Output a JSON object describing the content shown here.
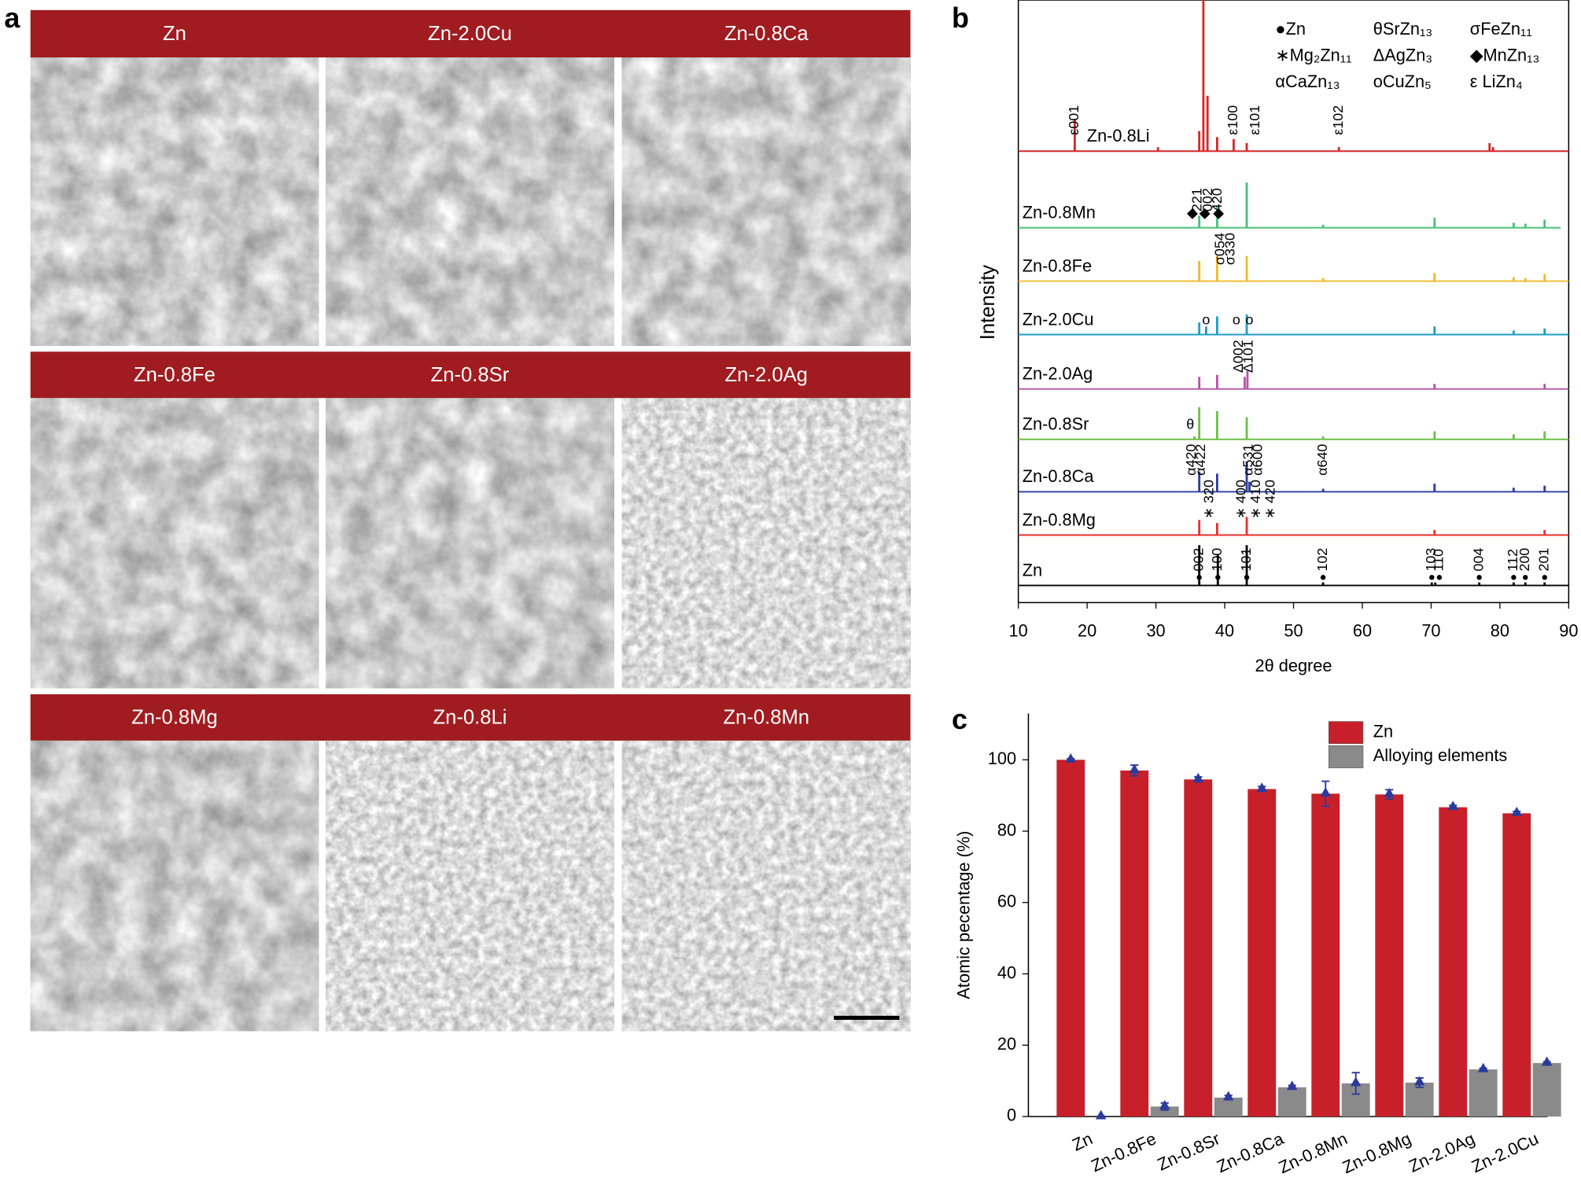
{
  "panel_labels": [
    "a",
    "b",
    "c"
  ],
  "micrographs": {
    "header_color": "#a01c20",
    "titles": [
      "Zn",
      "Zn-2.0Cu",
      "Zn-0.8Ca",
      "Zn-0.8Fe",
      "Zn-0.8Sr",
      "Zn-2.0Ag",
      "Zn-0.8Mg",
      "Zn-0.8Li",
      "Zn-0.8Mn"
    ]
  },
  "chart_data": [
    {
      "type": "xrd",
      "xlabel": "2θ degree",
      "ylabel": "Intensity",
      "xlim": [
        10,
        90
      ],
      "xticks": [
        10,
        20,
        30,
        40,
        50,
        60,
        70,
        80,
        90
      ],
      "legend": [
        "●Zn",
        "θSrZn₁₃",
        "σFeZn₁₁",
        "∗Mg₂Zn₁₁",
        "ΔAgZn₃",
        "◆MnZn₁₃",
        "αCaZn₁₃",
        "οCuZn₅",
        "ε LiZn₄"
      ],
      "series": [
        {
          "name": "Zn-0.8Li",
          "color": "#d62728",
          "x": [
            18.2,
            30.3,
            36.3,
            36.9,
            37.5,
            38.9,
            41.3,
            43.2,
            56.6,
            78.5,
            79
          ],
          "values": [
            32,
            4,
            20,
            150,
            55,
            14,
            12,
            8,
            4,
            8,
            4
          ],
          "annotations": [
            {
              "text": "ε001",
              "x": 18.2
            },
            {
              "text": "ε100",
              "x": 41.3
            },
            {
              "text": "ε101",
              "x": 44.5
            },
            {
              "text": "ε102",
              "x": 56.6
            }
          ]
        },
        {
          "name": "Zn-0.8Mn",
          "color": "#4cc07a",
          "x": [
            36.3,
            38.9,
            43.2,
            54.3,
            70.5,
            82,
            83.7,
            86.5
          ],
          "values": [
            12,
            22,
            45,
            3,
            10,
            5,
            4,
            8
          ],
          "annotations": [
            {
              "text": "◆",
              "x": 35.3
            },
            {
              "text": "221",
              "x": 36.1
            },
            {
              "text": "◆",
              "x": 37.1
            },
            {
              "text": "002",
              "x": 37.6
            },
            {
              "text": "◆",
              "x": 39.1
            },
            {
              "text": "420",
              "x": 39.0
            }
          ]
        },
        {
          "name": "Zn-0.8Fe",
          "color": "#f2b92b",
          "x": [
            36.3,
            38.9,
            43.2,
            54.3,
            70.5,
            82,
            83.7,
            86.5
          ],
          "values": [
            20,
            25,
            25,
            3,
            8,
            4,
            3,
            7
          ],
          "annotations": [
            {
              "text": "σ054",
              "x": 39.4
            },
            {
              "text": "σ330",
              "x": 40.9
            }
          ]
        },
        {
          "name": "Zn-2.0Cu",
          "color": "#1e9ec4",
          "x": [
            36.3,
            37.3,
            38.9,
            43.2,
            70.5,
            82,
            86.5
          ],
          "values": [
            12,
            8,
            18,
            20,
            8,
            4,
            6
          ],
          "annotations": [
            {
              "text": "ο",
              "x": 37.3
            },
            {
              "text": "ο",
              "x": 41.7
            },
            {
              "text": "ο",
              "x": 43.6
            }
          ]
        },
        {
          "name": "Zn-2.0Ag",
          "color": "#b653a8",
          "x": [
            36.3,
            38.9,
            42.9,
            43.3,
            70.5,
            86.5
          ],
          "values": [
            12,
            14,
            12,
            18,
            5,
            5
          ],
          "annotations": [
            {
              "text": "Δ002",
              "x": 42.1
            },
            {
              "text": "Δ101",
              "x": 43.5
            }
          ]
        },
        {
          "name": "Zn-0.8Sr",
          "color": "#6cc04a",
          "x": [
            35.6,
            36.3,
            38.9,
            43.2,
            54.3,
            70.5,
            82,
            86.5
          ],
          "values": [
            3,
            32,
            28,
            22,
            3,
            8,
            5,
            8
          ],
          "annotations": [
            {
              "text": "θ",
              "x": 35.0
            }
          ]
        },
        {
          "name": "Zn-0.8Ca",
          "color": "#2c3e9e",
          "x": [
            36.3,
            38.9,
            43.2,
            43.6,
            54.3,
            70.5,
            82,
            86.5
          ],
          "values": [
            20,
            18,
            30,
            10,
            3,
            8,
            4,
            6
          ],
          "annotations": [
            {
              "text": "α420",
              "x": 35.2
            },
            {
              "text": "α422",
              "x": 36.6
            },
            {
              "text": "α531",
              "x": 43.5
            },
            {
              "text": "α600",
              "x": 44.9
            },
            {
              "text": "α640",
              "x": 54.3
            }
          ]
        },
        {
          "name": "Zn-0.8Mg",
          "color": "#e8302a",
          "x": [
            36.3,
            38.9,
            43.2,
            70.5,
            86.5
          ],
          "values": [
            15,
            12,
            18,
            5,
            5
          ],
          "annotations": [
            {
              "text": "∗ 320",
              "x": 37.8
            },
            {
              "text": "∗ 400",
              "x": 42.5
            },
            {
              "text": "∗ 410",
              "x": 44.6
            },
            {
              "text": "∗ 420",
              "x": 46.7
            }
          ]
        },
        {
          "name": "Zn",
          "color": "#000000",
          "x": [
            36.3,
            39,
            43.2,
            54.3,
            70.1,
            70.6,
            77,
            82,
            83.7,
            86.5
          ],
          "values": [
            40,
            30,
            40,
            3,
            3,
            3,
            3,
            3,
            3,
            3
          ],
          "annotations": [
            {
              "text": "002",
              "x": 36.3
            },
            {
              "text": "100",
              "x": 39
            },
            {
              "text": "101",
              "x": 43.2
            },
            {
              "text": "102",
              "x": 54.3
            },
            {
              "text": "103",
              "x": 70.1
            },
            {
              "text": "110",
              "x": 71.2
            },
            {
              "text": "004",
              "x": 77
            },
            {
              "text": "112",
              "x": 82
            },
            {
              "text": "200",
              "x": 83.7
            },
            {
              "text": "201",
              "x": 86.5
            }
          ]
        }
      ]
    },
    {
      "type": "bar",
      "ylabel": "Atomic pecentage (%)",
      "categories": [
        "Zn",
        "Zn-0.8Fe",
        "Zn-0.8Sr",
        "Zn-0.8Ca",
        "Zn-0.8Mn",
        "Zn-0.8Mg",
        "Zn-2.0Ag",
        "Zn-2.0Cu"
      ],
      "ylim": [
        0,
        113
      ],
      "yticks": [
        0,
        20,
        40,
        60,
        80,
        100
      ],
      "legend": "top-right",
      "series": [
        {
          "name": "Zn",
          "color": "#c8202a",
          "values": [
            100,
            97,
            94.5,
            91.8,
            90.5,
            90.3,
            86.7,
            85
          ],
          "errors": [
            0.3,
            1.5,
            0.7,
            0.7,
            3.5,
            1.3,
            0.5,
            0.5
          ]
        },
        {
          "name": "Alloying elements",
          "color": "#8a8a8a",
          "values": [
            0,
            2.8,
            5.3,
            8.2,
            9.3,
            9.5,
            13.2,
            15
          ],
          "errors": [
            0.1,
            1,
            0.6,
            0.5,
            3,
            1.3,
            0.3,
            0.3
          ]
        }
      ]
    }
  ]
}
